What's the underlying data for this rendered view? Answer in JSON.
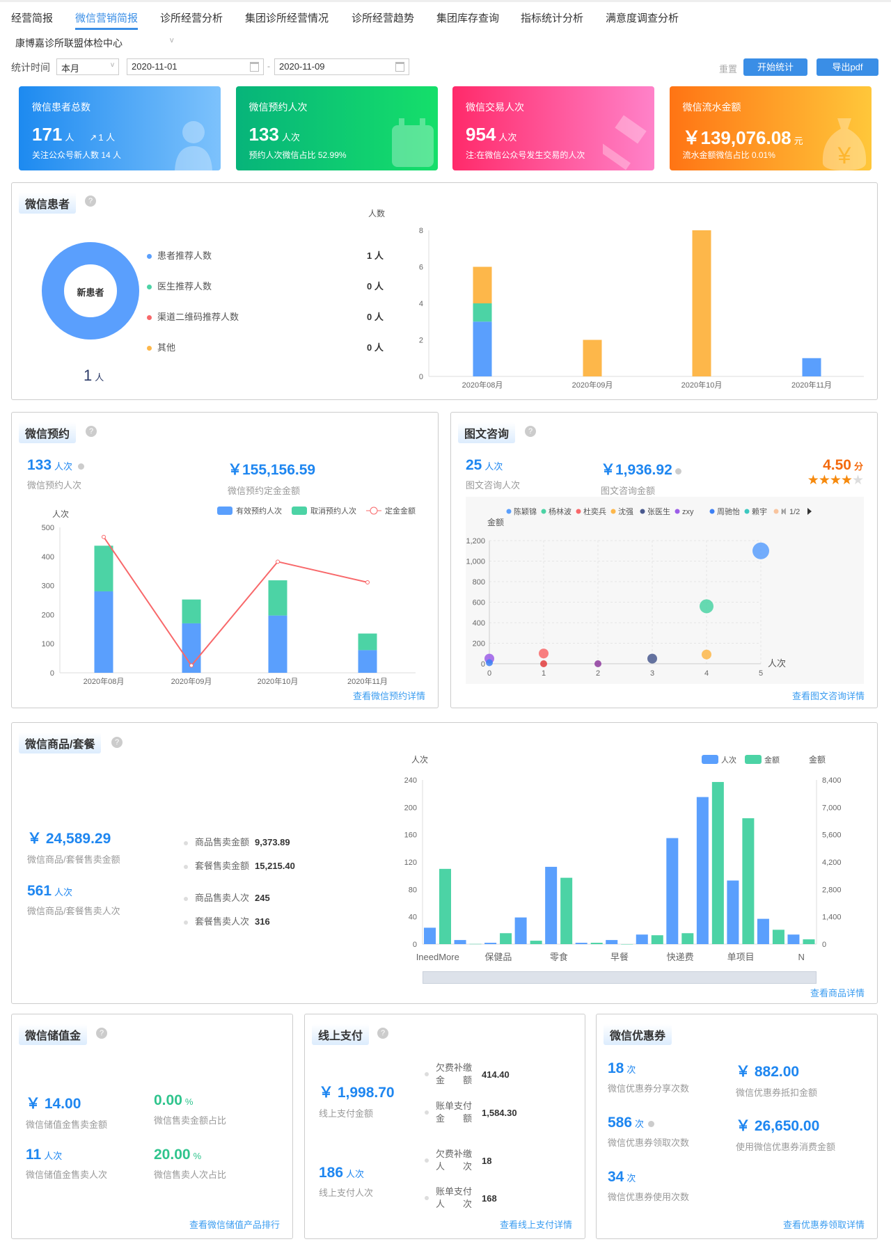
{
  "tabs": [
    "经营简报",
    "微信营销简报",
    "诊所经营分析",
    "集团诊所经营情况",
    "诊所经营趋势",
    "集团库存查询",
    "指标统计分析",
    "满意度调查分析"
  ],
  "active_tab": 1,
  "org": "康博嘉诊所联盟体检中心",
  "filter": {
    "label": "统计时间",
    "period": "本月",
    "start": "2020-11-01",
    "sep": "-",
    "end": "2020-11-09",
    "reset": "重置",
    "start_btn": "开始统计",
    "export_btn": "导出pdf"
  },
  "cards": [
    {
      "title": "微信患者总数",
      "value": "171",
      "unit": "人",
      "trend": "1 人",
      "sub": "关注公众号新人数 14 人",
      "colors": [
        "#1d8af0",
        "#7dc2fc"
      ],
      "icon": "user-icon"
    },
    {
      "title": "微信预约人次",
      "value": "133",
      "unit": "人次",
      "sub": "预约人次微信占比 52.99%",
      "colors": [
        "#07b47a",
        "#15df6a"
      ],
      "icon": "calendar-icon"
    },
    {
      "title": "微信交易人次",
      "value": "954",
      "unit": "人次",
      "sub": "注:在微信公众号发生交易的人次",
      "colors": [
        "#ff2a6a",
        "#ff82c9"
      ],
      "icon": "hammer-icon"
    },
    {
      "title": "微信流水金额",
      "value": "￥139,076.08",
      "unit": "元",
      "sub": "流水金额微信占比 0.01%",
      "colors": [
        "#ff7414",
        "#ffc73a"
      ],
      "icon": "money-bag-icon"
    }
  ],
  "patients": {
    "title": "微信患者",
    "donut_label": "新患者",
    "total": "1",
    "total_unit": "人",
    "legend": [
      {
        "label": "患者推荐人数",
        "value": "1 人",
        "color": "#5a9ffd"
      },
      {
        "label": "医生推荐人数",
        "value": "0 人",
        "color": "#4cd3a5"
      },
      {
        "label": "渠道二维码推荐人数",
        "value": "0 人",
        "color": "#f8686a"
      },
      {
        "label": "其他",
        "value": "0 人",
        "color": "#fdb74a"
      }
    ]
  },
  "appointments": {
    "title": "微信预约",
    "count": "133",
    "count_unit": "人次",
    "count_label": "微信预约人次",
    "deposit": "￥155,156.59",
    "deposit_label": "微信预约定金金额",
    "link": "查看微信预约详情"
  },
  "consult": {
    "title": "图文咨询",
    "count": "25",
    "count_unit": "人次",
    "count_label": "图文咨询人次",
    "amount": "￥1,936.92",
    "amount_label": "图文咨询金额",
    "score": "4.50",
    "score_unit": "分",
    "rating": 4.5,
    "link": "查看图文咨询详情",
    "pager": "1/2"
  },
  "goods": {
    "title": "微信商品/套餐",
    "amount": "￥ 24,589.29",
    "amount_label": "微信商品/套餐售卖金额",
    "count": "561",
    "count_unit": "人次",
    "count_label": "微信商品/套餐售卖人次",
    "breakdown": [
      {
        "label": "商品售卖金额",
        "value": "9,373.89"
      },
      {
        "label": "套餐售卖金额",
        "value": "15,215.40"
      },
      {
        "label": "商品售卖人次",
        "value": "245"
      },
      {
        "label": "套餐售卖人次",
        "value": "316"
      }
    ],
    "link": "查看商品详情"
  },
  "stored": {
    "title": "微信储值金",
    "items": [
      {
        "value": "￥ 14.00",
        "unit": "",
        "label": "微信储值金售卖金额",
        "color": "blue"
      },
      {
        "value": "0.00",
        "unit": "%",
        "label": "微信售卖金额占比",
        "color": "green"
      },
      {
        "value": "11",
        "unit": "人次",
        "label": "微信储值金售卖人次",
        "color": "blue"
      },
      {
        "value": "20.00",
        "unit": "%",
        "label": "微信售卖人次占比",
        "color": "green"
      }
    ],
    "link": "查看微信储值产品排行"
  },
  "online": {
    "title": "线上支付",
    "amount": "￥ 1,998.70",
    "amount_label": "线上支付金额",
    "count": "186",
    "count_unit": "人次",
    "count_label": "线上支付人次",
    "details": [
      {
        "l1": "欠费补缴",
        "l2": "金　　额",
        "value": "414.40"
      },
      {
        "l1": "账单支付",
        "l2": "金　　额",
        "value": "1,584.30"
      },
      {
        "l1": "欠费补缴",
        "l2": "人　　次",
        "value": "18"
      },
      {
        "l1": "账单支付",
        "l2": "人　　次",
        "value": "168"
      }
    ],
    "link": "查看线上支付详情"
  },
  "coupons": {
    "title": "微信优惠券",
    "items": [
      {
        "value": "18",
        "unit": "次",
        "label": "微信优惠券分享次数"
      },
      {
        "value": "￥ 882.00",
        "unit": "",
        "label": "微信优惠券抵扣金额"
      },
      {
        "value": "586",
        "unit": "次",
        "label": "微信优惠券领取次数"
      },
      {
        "value": "￥ 26,650.00",
        "unit": "",
        "label": "使用微信优惠券消费金额"
      },
      {
        "value": "34",
        "unit": "次",
        "label": "微信优惠券使用次数"
      }
    ],
    "link": "查看优惠券领取详情"
  },
  "chart_data": [
    {
      "type": "bar",
      "stacked": true,
      "ylabel": "人数",
      "ylim": [
        0,
        8
      ],
      "yticks": [
        0,
        2,
        4,
        6,
        8
      ],
      "categories": [
        "2020年08月",
        "2020年09月",
        "2020年10月",
        "2020年11月"
      ],
      "series": [
        {
          "name": "患者推荐人数",
          "color": "#5a9ffd",
          "values": [
            3,
            0,
            0,
            1
          ]
        },
        {
          "name": "医生推荐人数",
          "color": "#4cd3a5",
          "values": [
            1,
            0,
            0,
            0
          ]
        },
        {
          "name": "渠道二维码推荐人数",
          "color": "#f8686a",
          "values": [
            0,
            0,
            0,
            0
          ]
        },
        {
          "name": "其他",
          "color": "#fdb74a",
          "values": [
            2,
            2,
            8,
            0
          ]
        }
      ]
    },
    {
      "type": "bar",
      "stacked": true,
      "ylabel": "人次",
      "ylim": [
        0,
        500
      ],
      "yticks": [
        0,
        100,
        200,
        300,
        400,
        500
      ],
      "categories": [
        "2020年08月",
        "2020年09月",
        "2020年10月",
        "2020年11月"
      ],
      "series": [
        {
          "name": "有效预约人次",
          "color": "#5a9ffd",
          "values": [
            280,
            170,
            197,
            78
          ]
        },
        {
          "name": "取消预约人次",
          "color": "#4cd3a5",
          "values": [
            157,
            82,
            121,
            57
          ]
        },
        {
          "name": "定金金额",
          "type": "line",
          "color": "#f8686a",
          "values": [
            467,
            25,
            382,
            311
          ]
        }
      ]
    },
    {
      "type": "scatter",
      "xlabel": "人次",
      "ylabel": "金额",
      "xlim": [
        0,
        5
      ],
      "ylim": [
        0,
        1200
      ],
      "xticks": [
        0,
        1,
        2,
        3,
        4,
        5
      ],
      "yticks": [
        0,
        200,
        400,
        600,
        800,
        1000,
        1200
      ],
      "series": [
        {
          "name": "陈颖锦",
          "color": "#5a9ffd",
          "points": [
            [
              5,
              1100
            ]
          ]
        },
        {
          "name": "杨林波",
          "color": "#4cd3a5",
          "points": [
            [
              4,
              560
            ]
          ]
        },
        {
          "name": "杜奕兵",
          "color": "#f8686a",
          "points": [
            [
              1,
              100
            ]
          ]
        },
        {
          "name": "沈强",
          "color": "#fdb74a",
          "points": [
            [
              4,
              90
            ]
          ]
        },
        {
          "name": "张医生",
          "color": "#4a5a8f",
          "points": [
            [
              3,
              50
            ]
          ]
        },
        {
          "name": "zxy",
          "color": "#9c5ee8",
          "points": [
            [
              0,
              50
            ]
          ]
        },
        {
          "name": "周驰怡",
          "color": "#3d80f5",
          "points": [
            [
              0,
              10
            ]
          ]
        },
        {
          "name": "赖宇",
          "color": "#3cc8c0",
          "points": []
        },
        {
          "name": "I",
          "color": "#f8c49e",
          "points": []
        },
        {
          "name": "",
          "color": "#e23d3d",
          "points": [
            [
              1,
              0
            ]
          ]
        },
        {
          "name": "",
          "color": "#8e3b9e",
          "points": [
            [
              2,
              0
            ]
          ]
        }
      ]
    },
    {
      "type": "bar",
      "ylabel": "人次",
      "y2label": "金额",
      "ylim": [
        0,
        240
      ],
      "y2lim": [
        0,
        8400
      ],
      "yticks": [
        0,
        40,
        80,
        120,
        160,
        200,
        240
      ],
      "y2ticks": [
        "0",
        "1,400",
        "2,800",
        "4,200",
        "5,600",
        "7,000",
        "8,400"
      ],
      "categories": [
        "IneedMore",
        "",
        "保健品",
        "",
        "零食",
        "",
        "早餐",
        "",
        "快递费",
        "",
        "单项目",
        "",
        "N"
      ],
      "series": [
        {
          "name": "人次",
          "color": "#5a9ffd",
          "axis": "left",
          "values": [
            24,
            6,
            2,
            39,
            113,
            2,
            6,
            14,
            155,
            215,
            93,
            37,
            14
          ]
        },
        {
          "name": "金额",
          "color": "#4cd3a5",
          "axis": "right",
          "values": [
            3850,
            10,
            560,
            175,
            3395,
            70,
            0,
            455,
            560,
            8295,
            6440,
            735,
            245
          ]
        }
      ]
    }
  ]
}
